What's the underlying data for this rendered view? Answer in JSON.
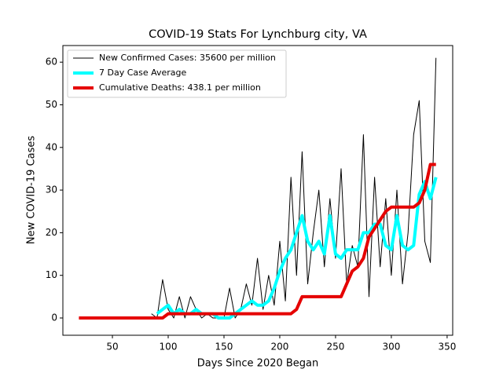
{
  "chart_data": {
    "type": "line",
    "title": "COVID-19 Stats For Lynchburg city, VA",
    "xlabel": "Days Since 2020 Began",
    "ylabel": "New COVID-19 Cases",
    "x": [
      20,
      25,
      30,
      35,
      40,
      45,
      50,
      55,
      60,
      65,
      70,
      75,
      80,
      85,
      90,
      95,
      100,
      105,
      110,
      115,
      120,
      125,
      130,
      135,
      140,
      145,
      150,
      155,
      160,
      165,
      170,
      175,
      180,
      185,
      190,
      195,
      200,
      205,
      210,
      215,
      220,
      225,
      230,
      235,
      240,
      245,
      250,
      255,
      260,
      265,
      270,
      275,
      280,
      285,
      290,
      295,
      300,
      305,
      310,
      315,
      320,
      325,
      330,
      335,
      340
    ],
    "series": [
      {
        "name": "New Confirmed Cases: 35600 per million",
        "color": "#000000",
        "width": 1,
        "values": [
          null,
          null,
          null,
          null,
          null,
          null,
          null,
          null,
          null,
          null,
          null,
          null,
          null,
          1,
          0,
          9,
          2,
          0,
          5,
          0,
          5,
          2,
          0,
          1,
          0,
          0,
          0,
          7,
          0,
          2,
          8,
          3,
          14,
          2,
          10,
          3,
          18,
          4,
          33,
          10,
          39,
          8,
          20,
          30,
          12,
          28,
          14,
          35,
          8,
          17,
          12,
          43,
          5,
          33,
          12,
          28,
          10,
          30,
          8,
          20,
          43,
          51,
          18,
          13,
          61
        ]
      },
      {
        "name": "7 Day Case Average",
        "color": "#00ffff",
        "width": 4,
        "values": [
          null,
          null,
          null,
          null,
          null,
          null,
          null,
          null,
          null,
          null,
          null,
          null,
          null,
          null,
          1,
          2,
          3,
          1,
          2,
          1,
          1,
          2,
          1,
          1,
          1,
          0,
          0,
          0,
          1,
          2,
          3,
          4,
          3,
          3,
          4,
          7,
          11,
          14,
          16,
          20,
          24,
          18,
          16,
          18,
          15,
          24,
          15,
          14,
          16,
          16,
          16,
          20,
          20,
          22,
          22,
          17,
          16,
          24,
          17,
          16,
          17,
          29,
          32,
          28,
          33
        ]
      },
      {
        "name": "Cumulative Deaths: 438.1 per million",
        "color": "#e50000",
        "width": 4,
        "values": [
          0,
          0,
          0,
          0,
          0,
          0,
          0,
          0,
          0,
          0,
          0,
          0,
          0,
          0,
          0,
          0,
          1,
          1,
          1,
          1,
          1,
          1,
          1,
          1,
          1,
          1,
          1,
          1,
          1,
          1,
          1,
          1,
          1,
          1,
          1,
          1,
          1,
          1,
          1,
          2,
          5,
          5,
          5,
          5,
          5,
          5,
          5,
          5,
          8,
          11,
          12,
          14,
          19,
          21,
          23,
          25,
          26,
          26,
          26,
          26,
          26,
          27,
          30,
          36,
          36
        ]
      }
    ],
    "xlim": [
      5.6,
      355
    ],
    "ylim": [
      -4.05,
      63.9
    ],
    "xticks": [
      50,
      100,
      150,
      200,
      250,
      300,
      350
    ],
    "yticks": [
      0,
      10,
      20,
      30,
      40,
      50,
      60
    ],
    "legend": "upper left"
  }
}
